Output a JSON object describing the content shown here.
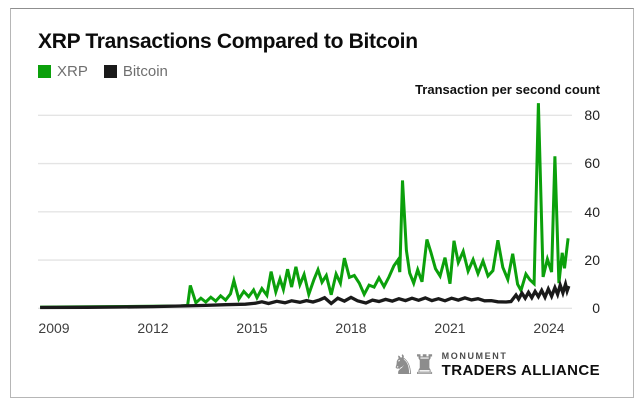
{
  "page": {
    "title": "XRP Transactions Compared to Bitcoin"
  },
  "axis_title": "Transaction per second count",
  "branding": {
    "line1": "MONUMENT",
    "line2": "TRADERS ALLIANCE",
    "icon": "chess-pieces-icon",
    "icon_glyphs": "♞♜"
  },
  "colors": {
    "xrp": "#0ba00b",
    "bitcoin": "#1a1a1a",
    "grid": "#e4e4e4"
  },
  "chart_data": {
    "type": "line",
    "title": "XRP Transactions Compared to Bitcoin",
    "xlabel": "",
    "ylabel": "Transaction per second count",
    "x_ticks": [
      2009,
      2012,
      2015,
      2018,
      2021,
      2024
    ],
    "y_ticks": [
      0,
      20,
      40,
      60,
      80
    ],
    "xlim": [
      2008.55,
      2024.7
    ],
    "ylim": [
      0,
      88
    ],
    "grid": true,
    "legend_position": "top-left",
    "series": [
      {
        "name": "XRP",
        "color": "#0ba00b",
        "points": [
          [
            2008.58,
            0.5
          ],
          [
            2009.5,
            0.6
          ],
          [
            2010.5,
            0.7
          ],
          [
            2011.5,
            0.8
          ],
          [
            2012.3,
            0.9
          ],
          [
            2012.85,
            1.0
          ],
          [
            2013.05,
            1.2
          ],
          [
            2013.13,
            9.5
          ],
          [
            2013.3,
            2.3
          ],
          [
            2013.45,
            4.2
          ],
          [
            2013.6,
            2.6
          ],
          [
            2013.75,
            4.6
          ],
          [
            2013.9,
            3.0
          ],
          [
            2014.05,
            5.2
          ],
          [
            2014.2,
            3.4
          ],
          [
            2014.35,
            6.0
          ],
          [
            2014.45,
            11.5
          ],
          [
            2014.6,
            3.8
          ],
          [
            2014.75,
            7.0
          ],
          [
            2014.9,
            4.8
          ],
          [
            2015.05,
            7.6
          ],
          [
            2015.15,
            4.4
          ],
          [
            2015.3,
            8.2
          ],
          [
            2015.45,
            5.4
          ],
          [
            2015.58,
            15.2
          ],
          [
            2015.72,
            6.8
          ],
          [
            2015.85,
            12.2
          ],
          [
            2015.95,
            7.8
          ],
          [
            2016.08,
            16.2
          ],
          [
            2016.2,
            8.8
          ],
          [
            2016.33,
            17.2
          ],
          [
            2016.45,
            9.8
          ],
          [
            2016.58,
            14.0
          ],
          [
            2016.72,
            5.8
          ],
          [
            2016.88,
            12.0
          ],
          [
            2017.0,
            16.0
          ],
          [
            2017.12,
            10.8
          ],
          [
            2017.25,
            13.6
          ],
          [
            2017.4,
            5.6
          ],
          [
            2017.55,
            14.2
          ],
          [
            2017.68,
            10.4
          ],
          [
            2017.8,
            20.8
          ],
          [
            2017.95,
            12.8
          ],
          [
            2018.1,
            13.6
          ],
          [
            2018.25,
            10.4
          ],
          [
            2018.4,
            5.8
          ],
          [
            2018.55,
            9.6
          ],
          [
            2018.7,
            8.8
          ],
          [
            2018.85,
            12.6
          ],
          [
            2019.0,
            9.0
          ],
          [
            2019.15,
            13.0
          ],
          [
            2019.3,
            17.6
          ],
          [
            2019.42,
            20.0
          ],
          [
            2019.48,
            15.0
          ],
          [
            2019.56,
            53.0
          ],
          [
            2019.68,
            24.0
          ],
          [
            2019.78,
            14.6
          ],
          [
            2019.9,
            10.4
          ],
          [
            2020.02,
            16.0
          ],
          [
            2020.15,
            11.0
          ],
          [
            2020.3,
            28.5
          ],
          [
            2020.42,
            23.2
          ],
          [
            2020.56,
            16.4
          ],
          [
            2020.7,
            13.4
          ],
          [
            2020.85,
            21.0
          ],
          [
            2021.0,
            10.2
          ],
          [
            2021.12,
            28.0
          ],
          [
            2021.25,
            19.0
          ],
          [
            2021.4,
            23.6
          ],
          [
            2021.55,
            15.4
          ],
          [
            2021.7,
            20.2
          ],
          [
            2021.85,
            14.4
          ],
          [
            2022.0,
            19.6
          ],
          [
            2022.15,
            13.4
          ],
          [
            2022.3,
            15.6
          ],
          [
            2022.45,
            28.2
          ],
          [
            2022.6,
            17.0
          ],
          [
            2022.75,
            12.0
          ],
          [
            2022.9,
            22.6
          ],
          [
            2023.05,
            10.0
          ],
          [
            2023.15,
            7.4
          ],
          [
            2023.3,
            14.2
          ],
          [
            2023.42,
            11.8
          ],
          [
            2023.55,
            10.2
          ],
          [
            2023.68,
            85.0
          ],
          [
            2023.82,
            13.0
          ],
          [
            2023.95,
            20.4
          ],
          [
            2024.08,
            15.0
          ],
          [
            2024.18,
            63.0
          ],
          [
            2024.3,
            10.4
          ],
          [
            2024.4,
            23.0
          ],
          [
            2024.47,
            16.6
          ],
          [
            2024.58,
            29.0
          ]
        ]
      },
      {
        "name": "Bitcoin",
        "color": "#1a1a1a",
        "points": [
          [
            2008.58,
            0.35
          ],
          [
            2010.0,
            0.4
          ],
          [
            2011.0,
            0.55
          ],
          [
            2012.0,
            0.7
          ],
          [
            2013.0,
            1.0
          ],
          [
            2013.6,
            1.2
          ],
          [
            2014.2,
            1.5
          ],
          [
            2014.8,
            1.7
          ],
          [
            2015.1,
            2.1
          ],
          [
            2015.3,
            2.7
          ],
          [
            2015.5,
            2.0
          ],
          [
            2015.75,
            2.9
          ],
          [
            2016.0,
            2.3
          ],
          [
            2016.2,
            3.1
          ],
          [
            2016.45,
            2.5
          ],
          [
            2016.65,
            3.2
          ],
          [
            2016.85,
            2.6
          ],
          [
            2017.05,
            3.5
          ],
          [
            2017.2,
            4.4
          ],
          [
            2017.4,
            2.0
          ],
          [
            2017.6,
            4.2
          ],
          [
            2017.8,
            3.0
          ],
          [
            2018.0,
            4.5
          ],
          [
            2018.2,
            3.1
          ],
          [
            2018.45,
            2.2
          ],
          [
            2018.65,
            3.4
          ],
          [
            2018.85,
            2.8
          ],
          [
            2019.05,
            3.7
          ],
          [
            2019.25,
            3.0
          ],
          [
            2019.45,
            4.0
          ],
          [
            2019.65,
            3.2
          ],
          [
            2019.85,
            4.2
          ],
          [
            2020.05,
            3.3
          ],
          [
            2020.25,
            4.3
          ],
          [
            2020.45,
            3.2
          ],
          [
            2020.65,
            4.0
          ],
          [
            2020.85,
            3.1
          ],
          [
            2021.05,
            4.2
          ],
          [
            2021.25,
            3.4
          ],
          [
            2021.45,
            4.3
          ],
          [
            2021.65,
            3.5
          ],
          [
            2021.85,
            4.0
          ],
          [
            2022.05,
            3.1
          ],
          [
            2022.25,
            3.2
          ],
          [
            2022.45,
            2.7
          ],
          [
            2022.7,
            2.6
          ],
          [
            2022.85,
            2.8
          ],
          [
            2023.0,
            5.5
          ],
          [
            2023.08,
            3.8
          ],
          [
            2023.18,
            6.3
          ],
          [
            2023.28,
            4.2
          ],
          [
            2023.38,
            6.6
          ],
          [
            2023.48,
            4.4
          ],
          [
            2023.58,
            7.0
          ],
          [
            2023.68,
            4.8
          ],
          [
            2023.78,
            7.4
          ],
          [
            2023.88,
            4.6
          ],
          [
            2023.98,
            8.0
          ],
          [
            2024.08,
            5.0
          ],
          [
            2024.18,
            8.6
          ],
          [
            2024.26,
            5.8
          ],
          [
            2024.34,
            9.6
          ],
          [
            2024.42,
            6.4
          ],
          [
            2024.5,
            10.0
          ],
          [
            2024.55,
            7.2
          ],
          [
            2024.6,
            9.2
          ]
        ]
      }
    ]
  }
}
